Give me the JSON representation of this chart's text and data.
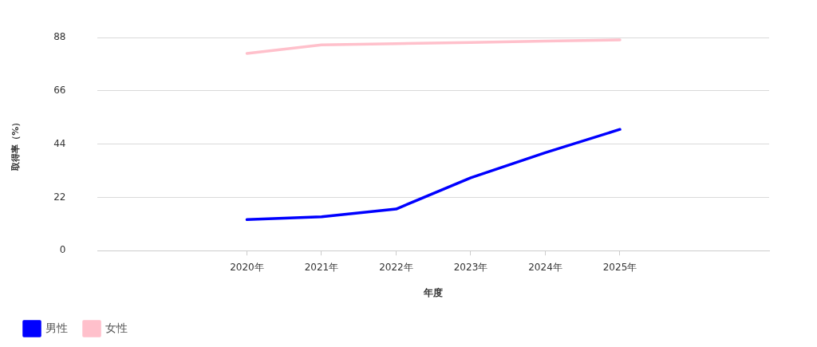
{
  "chart_data": {
    "type": "line",
    "xlabel": "年度",
    "ylabel": "取得率（%）",
    "categories": [
      null,
      null,
      "2020年",
      "2021年",
      "2022年",
      "2023年",
      "2024年",
      "2025年",
      null,
      null
    ],
    "series": [
      {
        "name": "男性",
        "color": "#0000ff",
        "values": [
          null,
          null,
          12.8,
          14.0,
          17.2,
          30.1,
          40.5,
          50.1,
          null,
          null
        ]
      },
      {
        "name": "女性",
        "color": "#ffc0cb",
        "values": [
          null,
          null,
          81.5,
          85.0,
          85.5,
          86.0,
          86.6,
          87.1,
          null,
          null
        ]
      }
    ],
    "ylim": [
      0,
      88
    ],
    "yticks": [
      0,
      22,
      44,
      66,
      88
    ],
    "grid": "y",
    "legend": "bottom left",
    "marker": "none",
    "line_style": "solid"
  }
}
